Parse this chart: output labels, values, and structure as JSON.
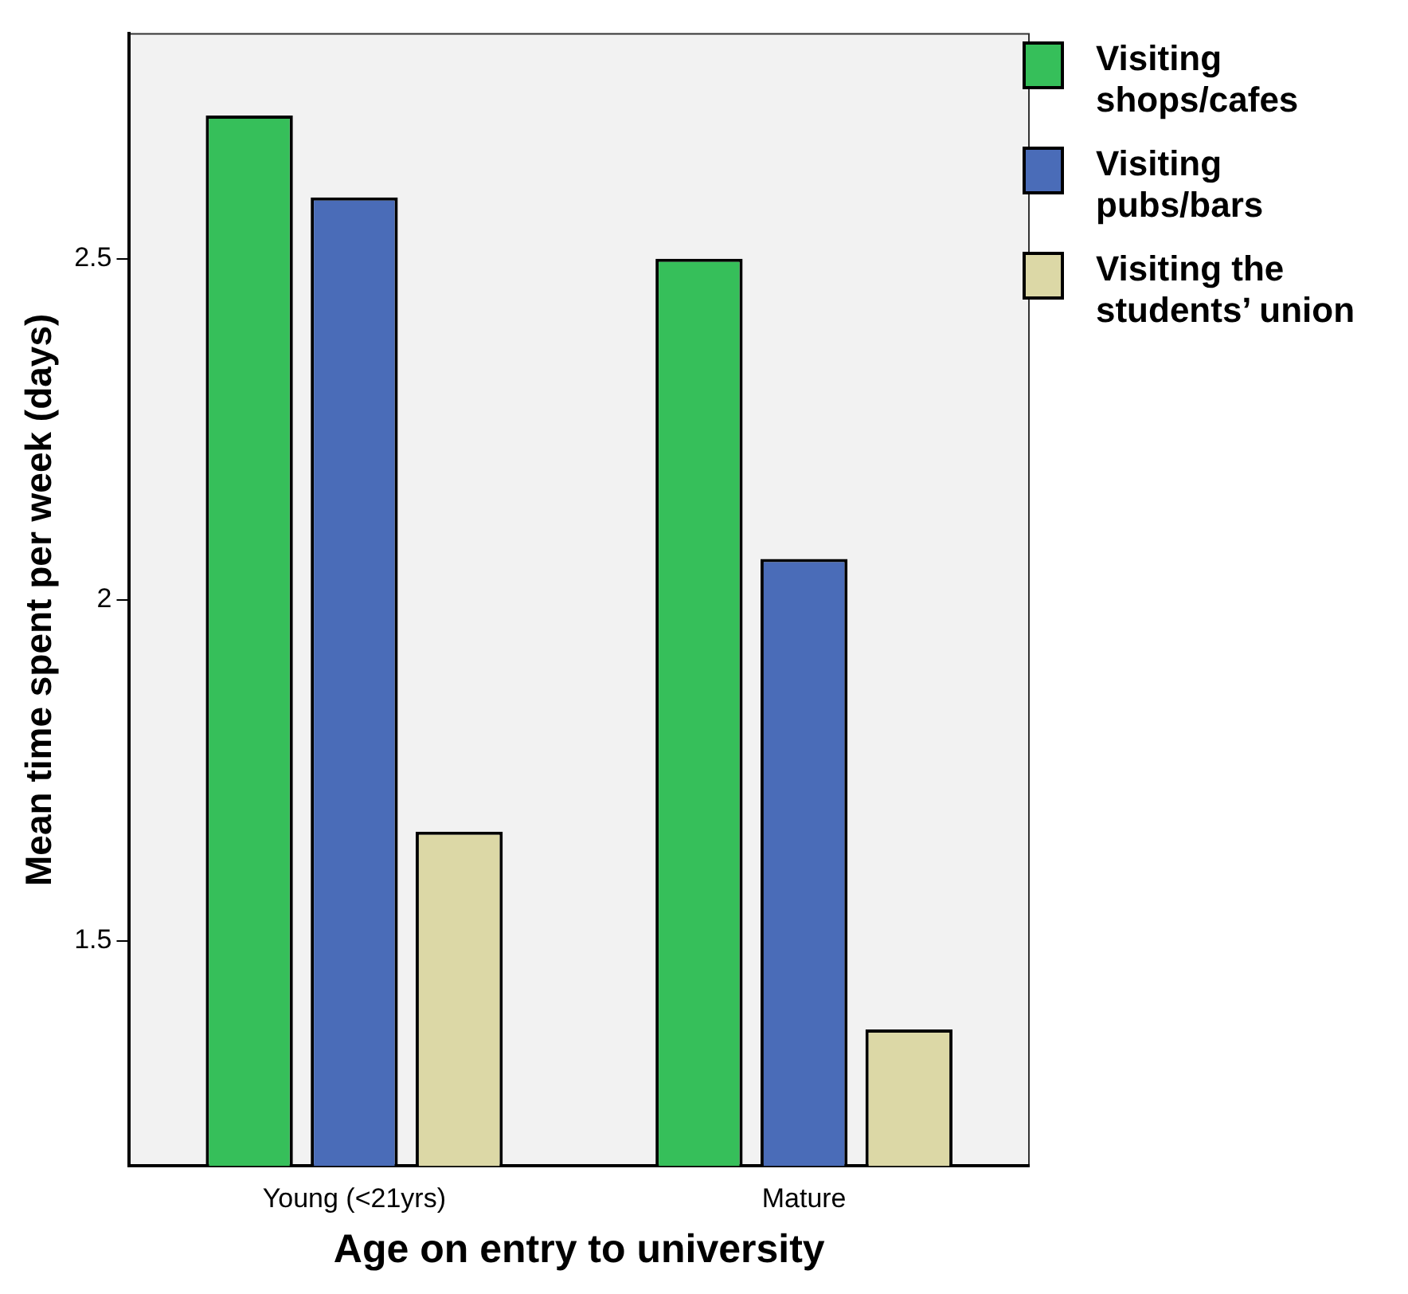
{
  "chart_data": {
    "type": "bar",
    "xlabel": "Age on entry to university",
    "ylabel": "Mean time spent per week (days)",
    "categories": [
      "Young (<21yrs)",
      "Mature"
    ],
    "series": [
      {
        "name": "Visiting shops/cafes",
        "color": "#36bf5a",
        "values": [
          2.71,
          2.5
        ]
      },
      {
        "name": "Visiting pubs/bars",
        "color": "#4a6cb8",
        "values": [
          2.59,
          2.06
        ]
      },
      {
        "name": "Visiting the students’ union",
        "color": "#dcd8a6",
        "values": [
          1.66,
          1.37
        ]
      }
    ],
    "ylim": [
      1.17,
      2.83
    ],
    "yticks": [
      1.5,
      2,
      2.5
    ],
    "grid": false,
    "legend": "right"
  }
}
